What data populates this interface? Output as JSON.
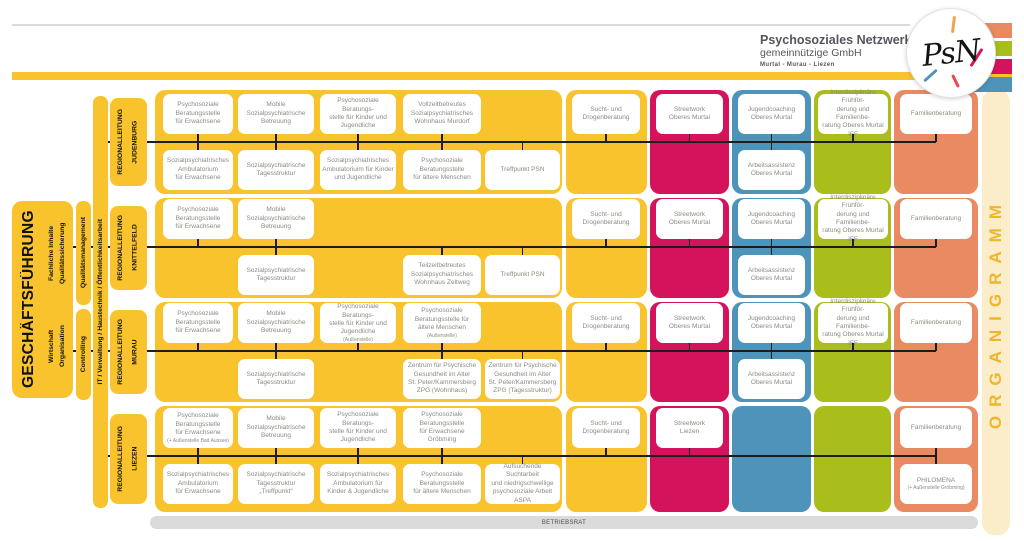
{
  "header": {
    "name": "Psychosoziales Netzwerk",
    "legal": "gemeinnützige GmbH",
    "regions": "Murtal - Murau - Liezen",
    "logo": "PsN"
  },
  "side": {
    "management": "GESCHÄFTSFÜHRUNG",
    "management_sub_quality": "Fachliche Inhalte\nQualitätssicherung",
    "management_sub_business": "Wirtschaft\nOrganisation",
    "quality_management": "Qualitätsmanagement",
    "controlling": "Controlling",
    "services": "IT  /  Verwaltung  /  Haustechnik  /  Öffentlichkeitsarbeit"
  },
  "organigramm_label": "ORGANIGRAMM",
  "betriebsrat_label": "BETRIEBSRAT",
  "colors": {
    "yellow": "#F9C32E",
    "pink": "#D4135C",
    "blue": "#4E93BA",
    "green": "#A9BE1B",
    "salmon": "#E98A62",
    "cream": "#FBEDCA",
    "gold": "#F0B52A",
    "bar_gray": "#DBDBDB",
    "line": "#1D1D1B",
    "box_text": "#8B8B84",
    "header_text": "#55565B"
  },
  "rows": [
    {
      "label": "REGIONALLEITUNG\nJUDENBURG",
      "units": [
        {
          "col": "c1",
          "pos": "top",
          "lines": "Psychosoziale\nBeratungsstelle\nfür Erwachsene"
        },
        {
          "col": "c2",
          "pos": "top",
          "lines": "Mobile\nSozialpsychiatrische\nBetreuung"
        },
        {
          "col": "c3",
          "pos": "top",
          "lines": "Psychosoziale Beratungs-\nstelle für Kinder und\nJugendliche"
        },
        {
          "col": "c4",
          "pos": "top",
          "lines": "Vollzeitbetreutes\nSozialpsychiatrisches\nWohnhaus Murdorf"
        },
        {
          "col": "sucht",
          "pos": "top",
          "lines": "Sucht- und\nDrogenberatung"
        },
        {
          "col": "pink",
          "pos": "top",
          "lines": "Streetwork\nOberes Murtal"
        },
        {
          "col": "blue",
          "pos": "top",
          "lines": "Jugendcoaching\nOberes Murtal"
        },
        {
          "col": "green",
          "pos": "top",
          "lines": "Interdisziplinäre Frühför-\nderung und Familienbe-\nratung Oberes Murtal IFF"
        },
        {
          "col": "salmon",
          "pos": "top",
          "lines": "Familienberatung"
        },
        {
          "col": "c1",
          "pos": "bottom",
          "lines": "Sozialpsychiatrisches\nAmbulatorium\nfür Erwachsene"
        },
        {
          "col": "c2",
          "pos": "bottom",
          "lines": "Sozialpsychiatrische\nTagesstruktur"
        },
        {
          "col": "c3",
          "pos": "bottom",
          "lines": "Sozialpsychiatrisches\nAmbulatoriuim für Kinder\nund Jugendliche"
        },
        {
          "col": "c4",
          "pos": "bottom",
          "lines": "Psychosoziale\nBeratungsstelle\nfür ältere Menschen"
        },
        {
          "col": "c5",
          "pos": "bottom",
          "lines": "Treffpunkt PSN"
        },
        {
          "col": "blue",
          "pos": "bottom",
          "lines": "Arbeitsassistenz\nOberes Murtal"
        }
      ]
    },
    {
      "label": "REGIONALLEITUNG\nKNITTELFELD",
      "units": [
        {
          "col": "c1",
          "pos": "top",
          "lines": "Psychosoziale\nBeratungsstelle\nfür Erwachsene"
        },
        {
          "col": "c2",
          "pos": "top",
          "lines": "Mobile\nSozialpsychiatrische\nBetreuung"
        },
        {
          "col": "sucht",
          "pos": "top",
          "lines": "Sucht- und\nDrogenberatung"
        },
        {
          "col": "pink",
          "pos": "top",
          "lines": "Streetwork\nOberes Murtal"
        },
        {
          "col": "blue",
          "pos": "top",
          "lines": "Jugendcoaching\nOberes Murtal"
        },
        {
          "col": "green",
          "pos": "top",
          "lines": "Interdisziplinäre Frühför-\nderung und Familienbe-\nratung Oberes Murtal IFF"
        },
        {
          "col": "salmon",
          "pos": "top",
          "lines": "Familienberatung"
        },
        {
          "col": "c2",
          "pos": "bottom",
          "lines": "Sozialpsychiatrische\nTagesstruktur"
        },
        {
          "col": "c4",
          "pos": "bottom",
          "lines": "Teilzeitbetreutes\nSozialpsychiatrisches\nWohnhaus Zeltweg"
        },
        {
          "col": "c5",
          "pos": "bottom",
          "lines": "Treffpunkt PSN"
        },
        {
          "col": "blue",
          "pos": "bottom",
          "lines": "Arbeitsassistenz\nOberes Murtal"
        }
      ]
    },
    {
      "label": "REGIONALLEITUNG\nMURAU",
      "units": [
        {
          "col": "c1",
          "pos": "top",
          "lines": "Psychosoziale\nBeratungsstelle\nfür Erwachsene"
        },
        {
          "col": "c2",
          "pos": "top",
          "lines": "Mobile\nSozialpsychiatrische\nBetreuung"
        },
        {
          "col": "c3",
          "pos": "top",
          "lines": "Psychosoziale Beratungs-\nstelle für Kinder und\nJugendliche",
          "small": "(Außenstelle)"
        },
        {
          "col": "c4",
          "pos": "top",
          "lines": "Psychosoziale\nBeratungsstelle für\nältere Menschen",
          "small": "(Außenstelle)"
        },
        {
          "col": "sucht",
          "pos": "top",
          "lines": "Sucht- und\nDrogenberatung"
        },
        {
          "col": "pink",
          "pos": "top",
          "lines": "Streetwork\nOberes Murtal"
        },
        {
          "col": "blue",
          "pos": "top",
          "lines": "Jugendcoaching\nOberes Murtal"
        },
        {
          "col": "green",
          "pos": "top",
          "lines": "Interdisziplinäre Frühför-\nderung und Familienbe-\nratung Oberes Murtal IFF"
        },
        {
          "col": "salmon",
          "pos": "top",
          "lines": "Familienberatung"
        },
        {
          "col": "c2",
          "pos": "bottom",
          "lines": "Sozialpsychiatrische\nTagesstruktur"
        },
        {
          "col": "c4",
          "pos": "bottom",
          "lines": "Zentrum für Psychische\nGesundheit im Alter\nSt. Peter/Kammersberg\nZPG (Wohnhaus)"
        },
        {
          "col": "c5",
          "pos": "bottom",
          "lines": "Zentrum für Psychische\nGesundheit im Alter\nSt. Peter/Kammersberg\nZPG (Tagesstruktur)"
        },
        {
          "col": "blue",
          "pos": "bottom",
          "lines": "Arbeitsassistenz\nOberes Murtal"
        }
      ]
    },
    {
      "label": "REGIONALLEITUNG\nLIEZEN",
      "units": [
        {
          "col": "c1",
          "pos": "top",
          "lines": "Psychosoziale\nBeratungsstelle\nfür Erwachsene",
          "small": "(+ Außenstelle Bad Aussee)"
        },
        {
          "col": "c2",
          "pos": "top",
          "lines": "Mobile\nSozialpsychiatrische\nBetreuung"
        },
        {
          "col": "c3",
          "pos": "top",
          "lines": "Psychosoziale Beratungs-\nstelle für Kinder und\nJugendliche"
        },
        {
          "col": "c4",
          "pos": "top",
          "lines": "Psychosoziale\nBeratungsstelle\nfür Erwachsene\nGröbming"
        },
        {
          "col": "sucht",
          "pos": "top",
          "lines": "Sucht- und\nDrogenberatung"
        },
        {
          "col": "pink",
          "pos": "top",
          "lines": "Streetwork\nLiezen"
        },
        {
          "col": "salmon",
          "pos": "top",
          "lines": "Familienberatung"
        },
        {
          "col": "c1",
          "pos": "bottom",
          "lines": "Sozialpsychiatrisches\nAmbulatorium\nfür Erwachsene"
        },
        {
          "col": "c2",
          "pos": "bottom",
          "lines": "Sozialpsychiatrische\nTagesstruktur „Treffpunkt“"
        },
        {
          "col": "c3",
          "pos": "bottom",
          "lines": "Sozialpsychiatrisches\nAmbulatorium für\nKinder & Jugendliche"
        },
        {
          "col": "c4",
          "pos": "bottom",
          "lines": "Psychosoziale\nBeratungsstelle\nfür ältere Menschen"
        },
        {
          "col": "c5",
          "pos": "bottom",
          "lines": "Aufsuchende Suchtarbeit\nund niedrigschwellige\npsychosoziale Arbeit\nASPA"
        },
        {
          "col": "salmon",
          "pos": "bottom",
          "lines": "PHILOMENA",
          "small": "(+ Außenstelle Gröbming)"
        }
      ]
    }
  ]
}
